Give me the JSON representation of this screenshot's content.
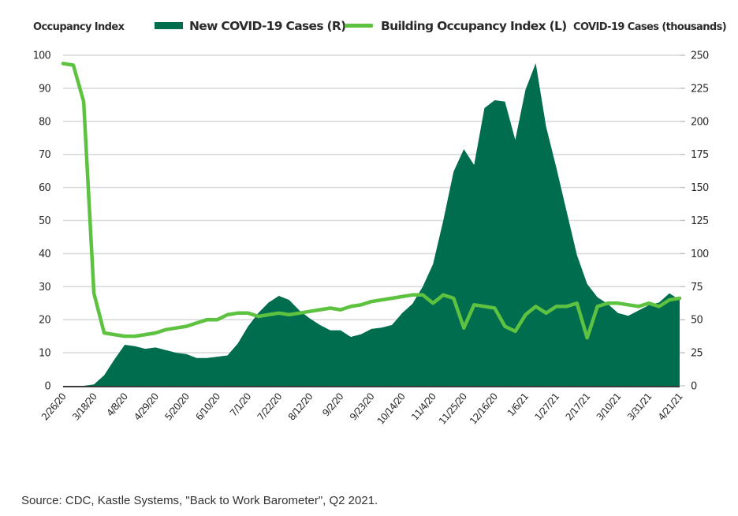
{
  "chart_data": {
    "type": "area+line",
    "title": "",
    "left_axis_title": "Occupancy Index",
    "right_axis_title": "COVID-19 Cases (thousands)",
    "legend": [
      {
        "name": "New COVID-19 Cases (R)",
        "kind": "area",
        "color": "#006d4e"
      },
      {
        "name": "Building Occupancy Index (L)",
        "kind": "line",
        "color": "#5cc240"
      }
    ],
    "legend_position": "top",
    "grid": true,
    "ylim_left": [
      0,
      100
    ],
    "ylim_right": [
      0,
      250
    ],
    "yticks_left": [
      "0",
      "10",
      "20",
      "30",
      "40",
      "50",
      "60",
      "70",
      "80",
      "90",
      "100"
    ],
    "yticks_right": [
      "0",
      "25",
      "50",
      "75",
      "100",
      "125",
      "150",
      "175",
      "200",
      "225",
      "250"
    ],
    "xtick_labels": [
      "2/26/20",
      "3/18/20",
      "4/8/20",
      "4/29/20",
      "5/20/20",
      "6/10/20",
      "7/1/20",
      "7/22/20",
      "8/12/20",
      "9/2/20",
      "9/23/20",
      "10/14/20",
      "11/4/20",
      "11/25/20",
      "12/16/20",
      "1/6/21",
      "1/27/21",
      "2/17/21",
      "3/10/21",
      "3/31/21",
      "4/21/21"
    ],
    "x_frequency": "weekly",
    "x_start": "2/26/20",
    "x_end": "4/21/21",
    "series": [
      {
        "name": "Building Occupancy Index (L)",
        "axis": "left",
        "values": [
          97.5,
          97,
          86,
          28,
          16,
          15.5,
          15,
          15,
          15.5,
          16,
          17,
          17.5,
          18,
          19,
          20,
          20,
          21.5,
          22,
          22,
          21,
          21.5,
          22,
          21.5,
          22,
          22.5,
          23,
          23.5,
          23,
          24,
          24.5,
          25.5,
          26,
          26.5,
          27,
          27.5,
          27.5,
          25,
          27.5,
          26.5,
          17.5,
          24.5,
          24,
          23.5,
          18,
          16.5,
          21.5,
          24,
          22,
          24,
          24,
          25,
          14.5,
          24,
          25,
          25,
          24.5,
          24,
          25,
          24,
          26,
          26.5
        ]
      },
      {
        "name": "New COVID-19 Cases (R)",
        "axis": "right",
        "values": [
          0,
          0,
          0,
          1,
          8,
          20,
          31,
          30,
          28,
          29,
          27,
          25,
          24,
          21,
          21,
          22,
          23,
          32,
          45,
          55,
          63,
          68,
          65,
          57,
          51,
          46,
          42,
          42,
          37,
          39,
          43,
          44,
          46,
          55,
          62,
          75,
          92,
          125,
          162,
          179,
          167,
          210,
          216,
          215,
          186,
          224,
          244,
          196,
          165,
          132,
          99,
          77,
          67,
          62,
          55,
          53,
          57,
          61,
          63,
          70,
          65
        ]
      }
    ]
  },
  "footer": {
    "source": "Source: CDC, Kastle Systems, \"Back to Work Barometer\", Q2 2021."
  }
}
